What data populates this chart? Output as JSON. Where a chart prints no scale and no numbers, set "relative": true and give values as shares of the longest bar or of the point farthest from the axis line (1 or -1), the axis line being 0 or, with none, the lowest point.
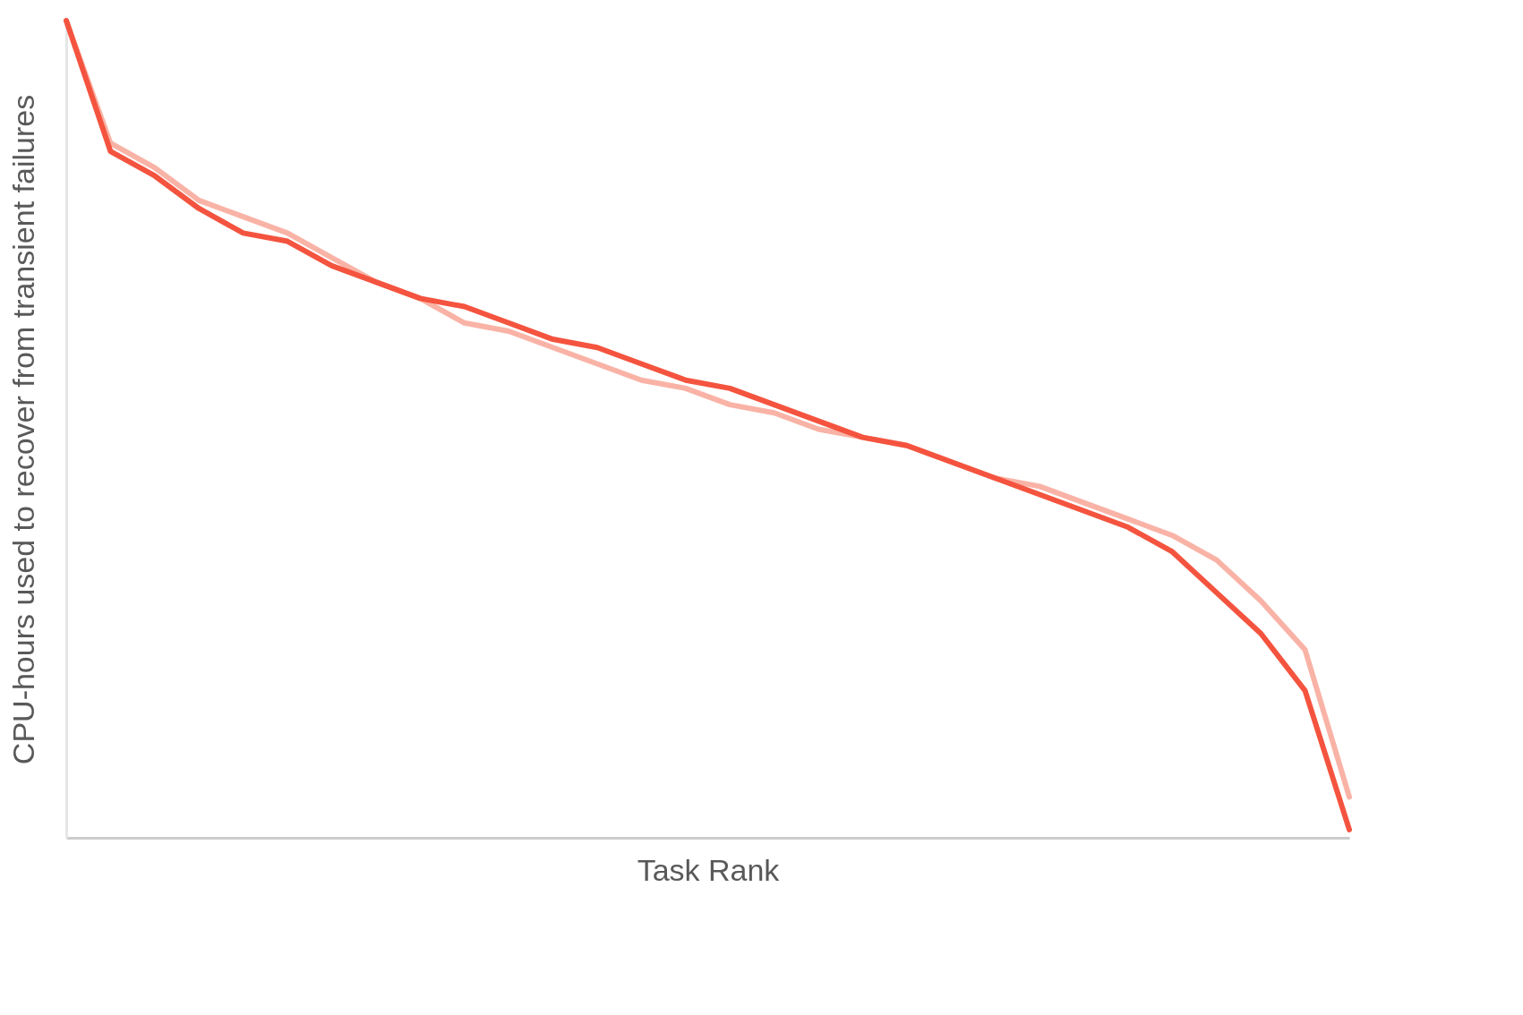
{
  "chart_data": {
    "type": "line",
    "relative": true,
    "xlabel": "Task Rank",
    "ylabel": "CPU-hours used to recover  from transient failures",
    "categories": [
      null,
      null,
      null,
      null,
      null,
      null,
      null,
      null,
      null,
      null,
      null,
      null,
      null,
      null,
      null,
      null,
      null,
      null,
      null,
      null,
      null,
      null,
      null,
      null,
      null,
      null,
      null,
      null,
      null,
      null
    ],
    "series": [
      {
        "color": "#f9b3a6",
        "values": [
          1.0,
          0.85,
          0.82,
          0.78,
          0.76,
          0.74,
          0.71,
          0.68,
          0.66,
          0.63,
          0.62,
          0.6,
          0.58,
          0.56,
          0.55,
          0.53,
          0.52,
          0.5,
          0.49,
          0.48,
          0.46,
          0.44,
          0.43,
          0.41,
          0.39,
          0.37,
          0.34,
          0.29,
          0.23,
          0.05
        ]
      },
      {
        "color": "#f4543f",
        "values": [
          1.0,
          0.84,
          0.81,
          0.77,
          0.74,
          0.73,
          0.7,
          0.68,
          0.66,
          0.65,
          0.63,
          0.61,
          0.6,
          0.58,
          0.56,
          0.55,
          0.53,
          0.51,
          0.49,
          0.48,
          0.46,
          0.44,
          0.42,
          0.4,
          0.38,
          0.35,
          0.3,
          0.25,
          0.18,
          0.01
        ]
      }
    ]
  }
}
